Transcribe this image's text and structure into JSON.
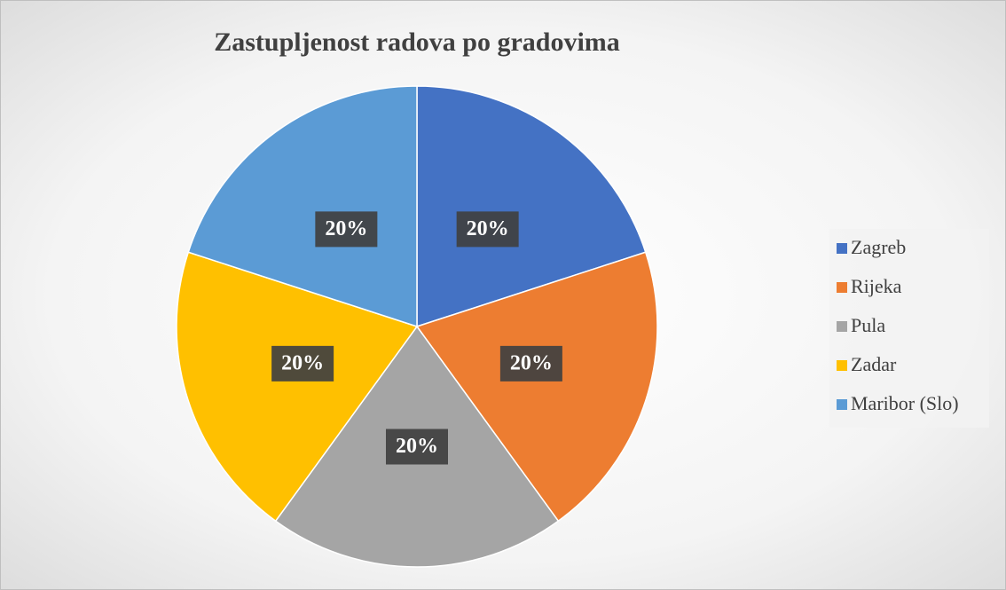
{
  "chart_data": {
    "type": "pie",
    "title": "Zastupljenost radova po gradovima",
    "categories": [
      "Zagreb",
      "Rijeka",
      "Pula",
      "Zadar",
      "Maribor (Slo)"
    ],
    "values": [
      20,
      20,
      20,
      20,
      20
    ],
    "value_labels": [
      "20%",
      "20%",
      "20%",
      "20%",
      "20%"
    ],
    "colors": [
      "#4472c4",
      "#ed7d31",
      "#a5a5a5",
      "#ffc000",
      "#5b9bd5"
    ],
    "legend": "right"
  }
}
